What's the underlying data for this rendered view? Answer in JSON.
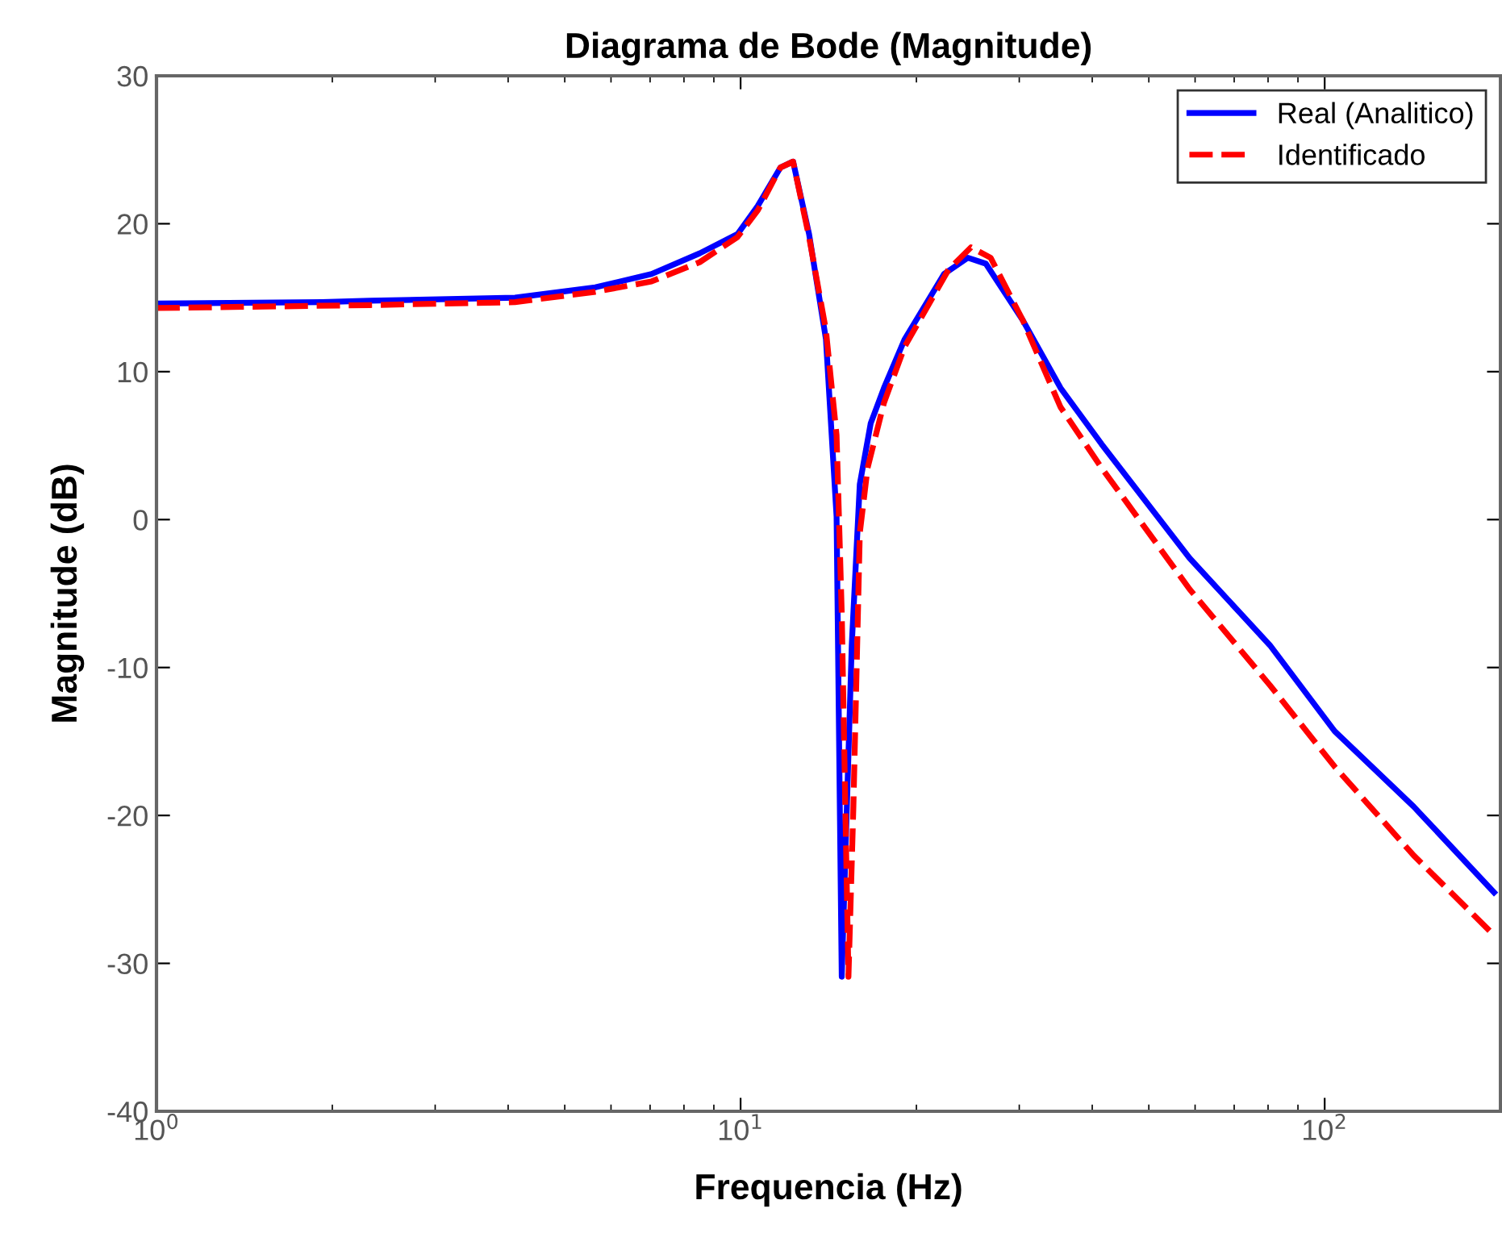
{
  "chart_data": {
    "type": "line",
    "title": "Diagrama de Bode (Magnitude)",
    "xlabel": "Frequencia (Hz)",
    "ylabel": "Magnitude (dB)",
    "log": "x",
    "xlim": [
      1,
      200
    ],
    "xticks": [
      {
        "value": 1,
        "label": "10$^{0}$"
      },
      {
        "value": 10,
        "label": "10$^{1}$"
      },
      {
        "value": 100,
        "label": "10$^{2}$"
      }
    ],
    "ylim": [
      -40,
      30
    ],
    "yticks": [
      -40,
      -30,
      -20,
      -10,
      0,
      10,
      20,
      30
    ],
    "grid": false,
    "legend": "top right",
    "marker": "none",
    "series": [
      {
        "name": "Real (Analitico)",
        "color": "#0000ff",
        "line_style": "solid",
        "x": [
          1,
          1.92,
          2.32,
          4.11,
          5.64,
          7.04,
          8.51,
          9.88,
          10.7,
          11.7,
          12.3,
          13.1,
          14.0,
          14.6,
          14.9,
          15.5,
          16.0,
          16.7,
          17.6,
          19.1,
          22.3,
          24.5,
          26.3,
          30.4,
          35.3,
          41.5,
          58.7,
          80.6,
          104,
          142,
          195
        ],
        "values": [
          14.6,
          14.7,
          14.8,
          15.0,
          15.7,
          16.6,
          18.0,
          19.3,
          21.2,
          23.8,
          24.2,
          19.3,
          12.2,
          0.2,
          -30.9,
          -8.5,
          2.4,
          6.5,
          8.9,
          12.2,
          16.6,
          17.7,
          17.3,
          13.5,
          8.9,
          5.1,
          -2.6,
          -8.5,
          -14.3,
          -19.4,
          -25.2
        ]
      },
      {
        "name": "Identificado",
        "color": "#ff0000",
        "line_style": "dashed",
        "x": [
          1,
          2.32,
          4.11,
          5.64,
          7.04,
          8.51,
          9.88,
          10.7,
          11.7,
          12.3,
          13.1,
          14.0,
          14.6,
          14.9,
          15.3,
          15.6,
          16.0,
          16.5,
          17.6,
          19.1,
          22.7,
          24.8,
          26.8,
          30.4,
          35.3,
          41.5,
          58.7,
          80.6,
          104,
          142,
          195
        ],
        "values": [
          14.3,
          14.5,
          14.7,
          15.4,
          16.1,
          17.4,
          19.1,
          20.9,
          23.8,
          24.2,
          19.1,
          12.8,
          5.7,
          -6.3,
          -30.9,
          -19.4,
          -0.9,
          3.5,
          7.9,
          11.7,
          16.9,
          18.4,
          17.7,
          13.5,
          7.6,
          3.5,
          -4.7,
          -11.2,
          -16.7,
          -22.7,
          -28.1
        ]
      }
    ]
  }
}
